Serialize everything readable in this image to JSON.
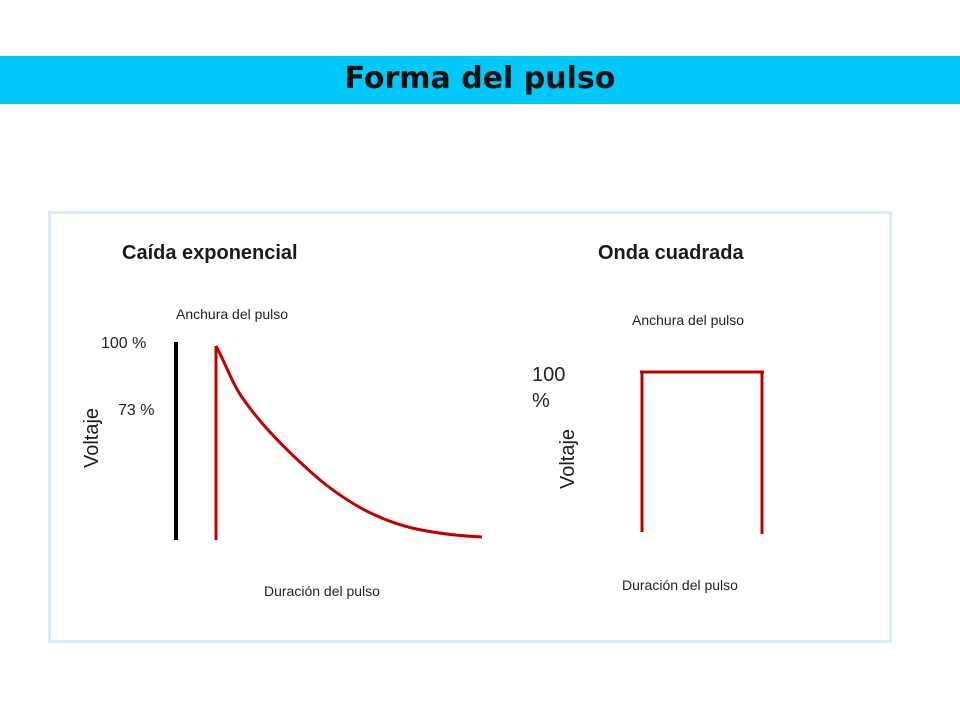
{
  "page": {
    "title": "Forma del pulso"
  },
  "left_diagram": {
    "heading": "Caída exponencial",
    "top_label": "Anchura del pulso",
    "bottom_label": "Duración del pulso",
    "y_label": "Voltaje",
    "level_max": "100 %",
    "level_mid": "73 %"
  },
  "right_diagram": {
    "heading": "Onda cuadrada",
    "top_label": "Anchura del pulso",
    "bottom_label": "Duración del pulso",
    "y_label": "Voltaje",
    "level_max_line1": "100",
    "level_max_line2": "%"
  },
  "colors": {
    "title_bar": "#00c8f8",
    "pulse": "#c00000",
    "axis": "#000000",
    "panel_border": "#d6ecf6"
  }
}
